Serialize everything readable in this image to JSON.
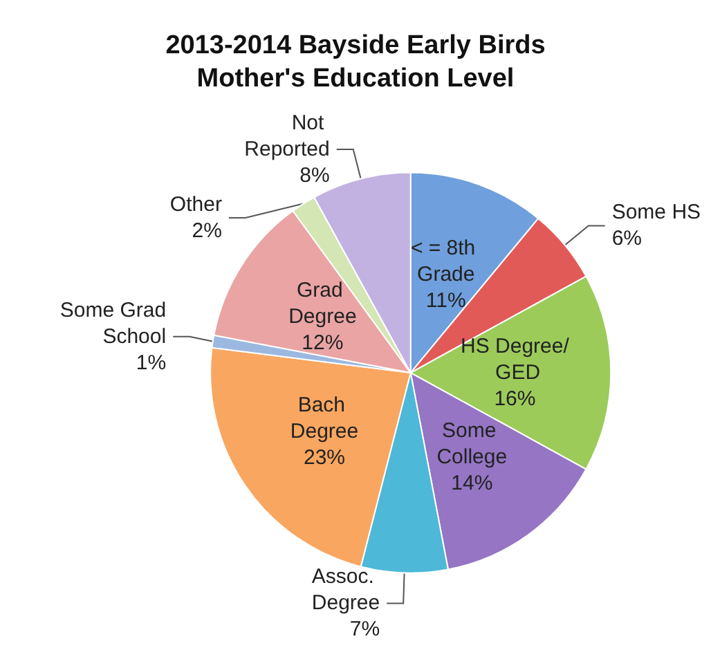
{
  "chart_data": {
    "type": "pie",
    "title": "2013-2014 Bayside Early Birds\nMother's Education Level",
    "categories": [
      "< = 8th Grade",
      "Some HS",
      "HS Degree/ GED",
      "Some College",
      "Assoc. Degree",
      "Bach Degree",
      "Some Grad School",
      "Grad Degree",
      "Other",
      "Not Reported"
    ],
    "values": [
      11,
      6,
      16,
      14,
      7,
      23,
      1,
      12,
      2,
      8
    ],
    "value_labels": [
      "11%",
      "6%",
      "16%",
      "14%",
      "7%",
      "23%",
      "1%",
      "12%",
      "2%",
      "8%"
    ],
    "colors": [
      "#6f9fdc",
      "#e25a58",
      "#9ccb5a",
      "#9575c4",
      "#4db8d8",
      "#f9a660",
      "#9bb8e0",
      "#eaa4a4",
      "#d3e6b4",
      "#c2b2e2"
    ],
    "legend": false
  }
}
